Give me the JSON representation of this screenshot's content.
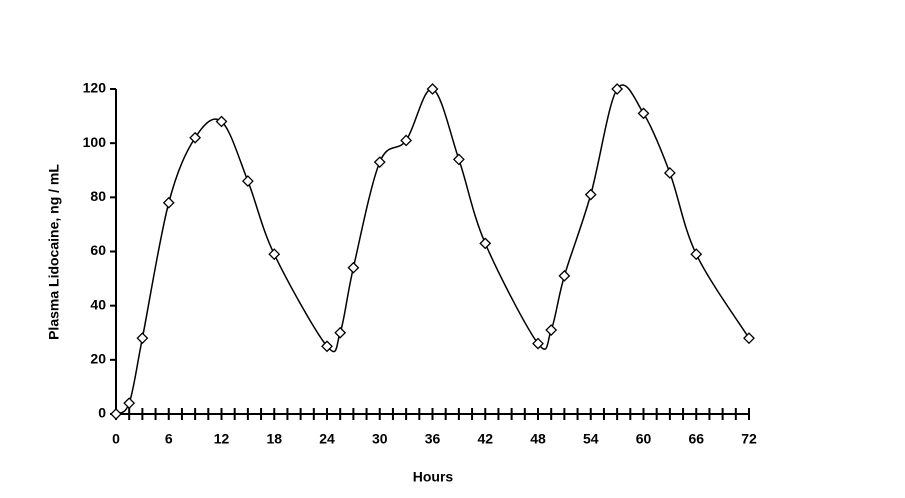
{
  "chart_data": {
    "type": "line",
    "x_label": "Hours",
    "y_label": "Plasma Lidocaine, ng / mL",
    "x": [
      0,
      1.5,
      3,
      6,
      9,
      12,
      15,
      18,
      24,
      25.5,
      27,
      30,
      33,
      36,
      39,
      42,
      48,
      49.5,
      51,
      54,
      57,
      60,
      63,
      66,
      72
    ],
    "series": [
      {
        "color": "#000000",
        "values": [
          0,
          4,
          28,
          78,
          102,
          108,
          86,
          59,
          25,
          30,
          54,
          93,
          101,
          120,
          94,
          63,
          26,
          31,
          51,
          81,
          120,
          111,
          89,
          59,
          28
        ]
      }
    ],
    "xlim": [
      0,
      72
    ],
    "xticks": [
      0,
      6,
      12,
      18,
      24,
      30,
      36,
      42,
      48,
      54,
      60,
      66,
      72
    ],
    "ylim": [
      0,
      120
    ],
    "yticks": [
      0,
      20,
      40,
      60,
      80,
      100,
      120
    ],
    "grid": false
  }
}
